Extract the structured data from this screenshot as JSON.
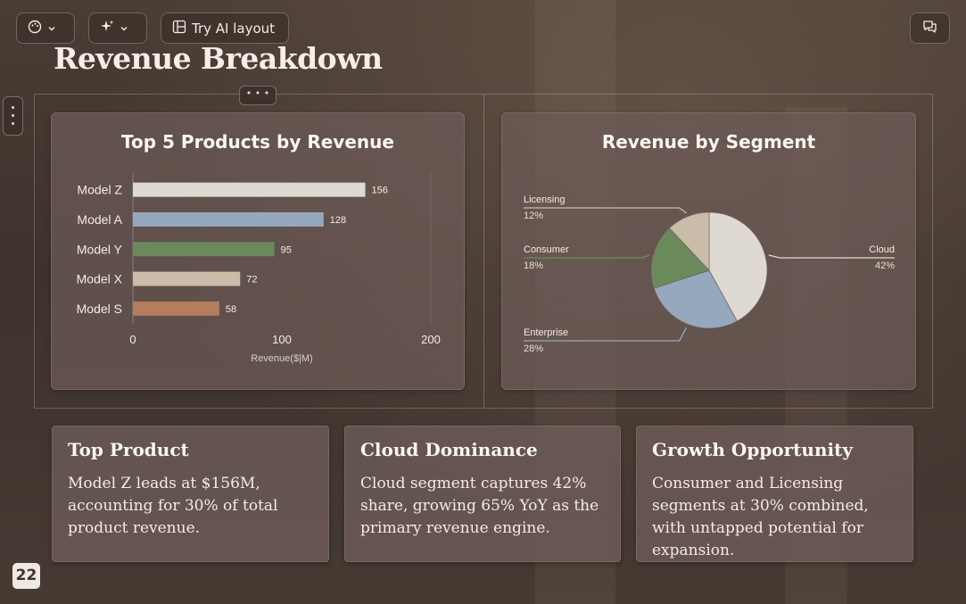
{
  "toolbar": {
    "theme_button_icon": "palette-icon",
    "ai_button_icon": "sparkle-icon",
    "try_ai_label": "Try AI layout",
    "comments_icon": "comments-icon"
  },
  "slide": {
    "title": "Revenue Breakdown",
    "page_number": "22"
  },
  "charts": [
    {
      "title": "Top 5 Products by Revenue"
    },
    {
      "title": "Revenue by Segment"
    }
  ],
  "chart_data": [
    {
      "type": "bar",
      "orientation": "horizontal",
      "title": "Top 5 Products by Revenue",
      "categories": [
        "Model Z",
        "Model A",
        "Model Y",
        "Model X",
        "Model S"
      ],
      "values": [
        156,
        128,
        95,
        72,
        58
      ],
      "colors": [
        "#dedad2",
        "#96a8bd",
        "#6b8a5c",
        "#c9bca8",
        "#b57c5d"
      ],
      "xlabel": "Revenue($|M)",
      "xticks": [
        "0",
        "100",
        "200"
      ],
      "xlim": [
        0,
        200
      ]
    },
    {
      "type": "pie",
      "title": "Revenue by Segment",
      "slices": [
        {
          "label": "Cloud",
          "value": 42,
          "pct": "42%",
          "color": "#dedad2"
        },
        {
          "label": "Enterprise",
          "value": 28,
          "pct": "28%",
          "color": "#96a8bd"
        },
        {
          "label": "Consumer",
          "value": 18,
          "pct": "18%",
          "color": "#6b8a5c"
        },
        {
          "label": "Licensing",
          "value": 12,
          "pct": "12%",
          "color": "#c9bca8"
        }
      ]
    }
  ],
  "insights": [
    {
      "title": "Top Product",
      "body": "Model Z leads at $156M, accounting for 30% of total product revenue."
    },
    {
      "title": "Cloud Dominance",
      "body": "Cloud segment captures 42% share, growing 65% YoY as the primary revenue engine."
    },
    {
      "title": "Growth Opportunity",
      "body": "Consumer and Licensing segments at 30% combined, with untapped potential for expansion."
    }
  ]
}
